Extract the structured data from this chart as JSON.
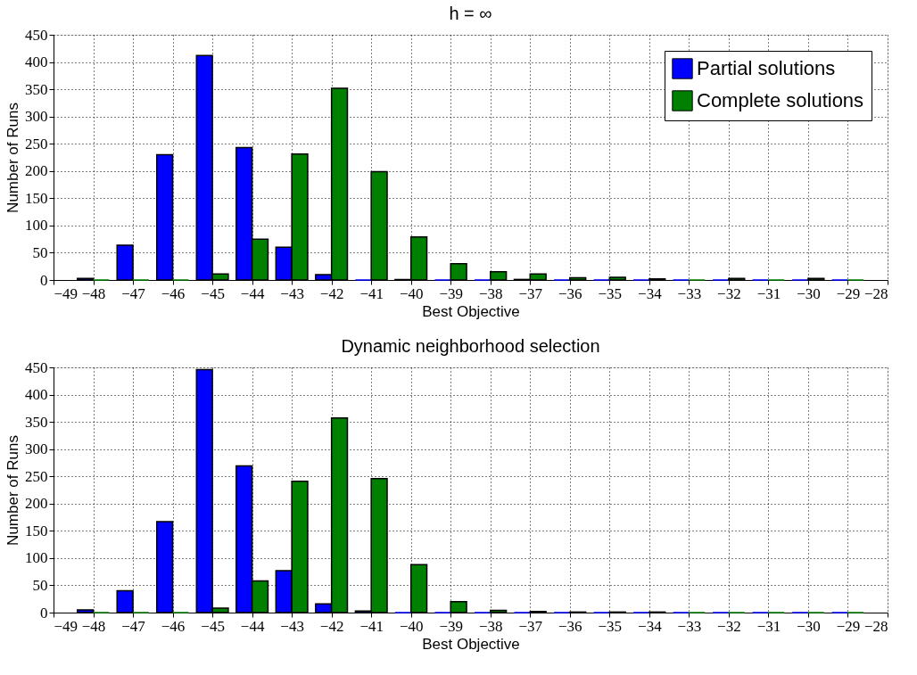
{
  "chart_data": [
    {
      "type": "bar",
      "title": "h = ∞",
      "xlabel": "Best Objective",
      "ylabel": "Number of Runs",
      "x": [
        -48,
        -47,
        -46,
        -45,
        -44,
        -43,
        -42,
        -41,
        -40,
        -39,
        -38,
        -37,
        -36,
        -35,
        -34,
        -33,
        -32,
        -31,
        -30,
        -29
      ],
      "series": [
        {
          "name": "Partial solutions",
          "color": "#0000ff",
          "values": [
            3,
            64,
            230,
            412,
            243,
            60,
            10,
            0,
            1,
            0,
            0,
            1,
            0,
            0,
            0,
            0,
            0,
            0,
            0,
            0
          ]
        },
        {
          "name": "Complete solutions",
          "color": "#008000",
          "values": [
            0,
            0,
            0,
            11,
            75,
            231,
            352,
            199,
            79,
            30,
            15,
            11,
            4,
            5,
            2,
            0,
            3,
            0,
            3,
            0
          ]
        }
      ],
      "xlim": [
        -49,
        -28
      ],
      "xticks": [
        -49,
        -48,
        -47,
        -46,
        -45,
        -44,
        -43,
        -42,
        -41,
        -40,
        -39,
        -38,
        -37,
        -36,
        -35,
        -34,
        -33,
        -32,
        -31,
        -30,
        -29,
        -28
      ],
      "ylim": [
        0,
        450
      ],
      "yticks": [
        0,
        50,
        100,
        150,
        200,
        250,
        300,
        350,
        400,
        450
      ],
      "grid": true,
      "legend": "top right"
    },
    {
      "type": "bar",
      "title": "Dynamic neighborhood selection",
      "xlabel": "Best Objective",
      "ylabel": "Number of Runs",
      "x": [
        -48,
        -47,
        -46,
        -45,
        -44,
        -43,
        -42,
        -41,
        -40,
        -39,
        -38,
        -37,
        -36,
        -35,
        -34,
        -33,
        -32,
        -31,
        -30,
        -29
      ],
      "series": [
        {
          "color": "#0000ff",
          "values": [
            5,
            40,
            167,
            446,
            269,
            77,
            16,
            3,
            0,
            0,
            0,
            0,
            0,
            0,
            0,
            0,
            0,
            0,
            0,
            0
          ]
        },
        {
          "color": "#008000",
          "values": [
            0,
            0,
            0,
            8,
            58,
            241,
            357,
            246,
            88,
            20,
            4,
            2,
            1,
            1,
            1,
            0,
            0,
            0,
            0,
            0
          ]
        }
      ],
      "xlim": [
        -49,
        -28
      ],
      "xticks": [
        -49,
        -48,
        -47,
        -46,
        -45,
        -44,
        -43,
        -42,
        -41,
        -40,
        -39,
        -38,
        -37,
        -36,
        -35,
        -34,
        -33,
        -32,
        -31,
        -30,
        -29,
        -28
      ],
      "ylim": [
        0,
        450
      ],
      "yticks": [
        0,
        50,
        100,
        150,
        200,
        250,
        300,
        350,
        400,
        450
      ],
      "grid": true
    }
  ]
}
